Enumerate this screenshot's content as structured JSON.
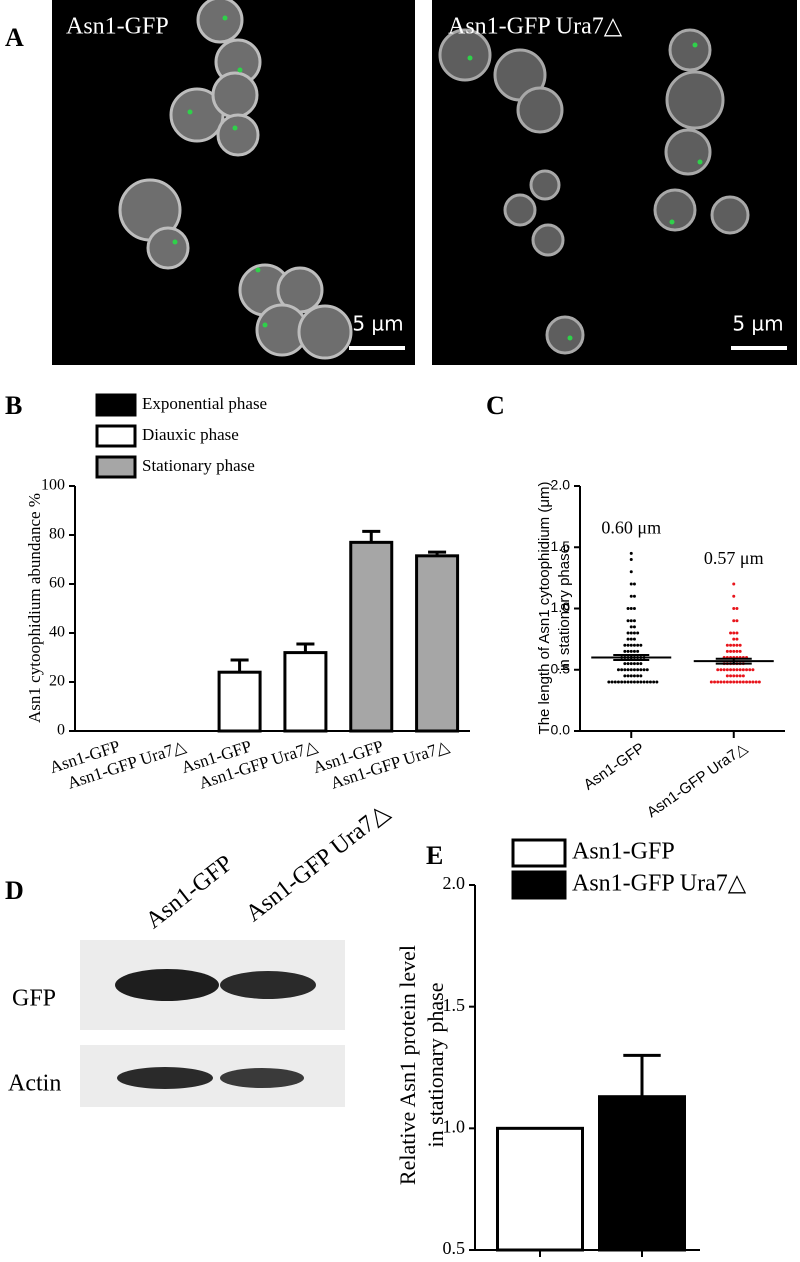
{
  "panel_labels": [
    "A",
    "B",
    "C",
    "D",
    "E"
  ],
  "micrographs": [
    {
      "label": "Asn1-GFP",
      "scale_bar": "5 µm"
    },
    {
      "label": "Asn1-GFP Ura7△",
      "scale_bar": "5 µm"
    }
  ],
  "western_blot": {
    "lanes": [
      "Asn1-GFP",
      "Asn1-GFP Ura7△"
    ],
    "rows": [
      "GFP",
      "Actin"
    ]
  },
  "chart_data": [
    {
      "type": "bar",
      "y_label": "Asn1 cytoophidium abundance %",
      "categories": [
        "Asn1-GFP",
        "Asn1-GFP Ura7△",
        "Asn1-GFP",
        "Asn1-GFP Ura7△",
        "Asn1-GFP",
        "Asn1-GFP Ura7△"
      ],
      "series": [
        {
          "name": "Exponential phase",
          "color": "#000000",
          "values": [
            0,
            0,
            null,
            null,
            null,
            null
          ]
        },
        {
          "name": "Diauxic phase",
          "color": "#ffffff",
          "values": [
            null,
            null,
            24,
            32,
            null,
            null
          ],
          "errors": [
            null,
            null,
            5,
            3.5,
            null,
            null
          ]
        },
        {
          "name": "Stationary phase",
          "color": "#a6a6a6",
          "values": [
            null,
            null,
            null,
            null,
            77,
            71.5
          ],
          "errors": [
            null,
            null,
            null,
            null,
            4.5,
            1.5
          ]
        }
      ],
      "ylim": [
        0,
        100
      ],
      "yticks": [
        0,
        20,
        40,
        60,
        80,
        100
      ],
      "legend": "top-left"
    },
    {
      "type": "scatter",
      "y_label": [
        "The length of Asn1 cytoophidium (μm)",
        "in stationary phase"
      ],
      "categories": [
        "Asn1-GFP",
        "Asn1-GFP Ura7△"
      ],
      "groups": [
        {
          "color": "#000000",
          "mean": 0.6,
          "mean_label": "0.60 μm",
          "sem": 0.02,
          "values": [
            0.4,
            0.4,
            0.4,
            0.4,
            0.4,
            0.4,
            0.4,
            0.4,
            0.4,
            0.4,
            0.4,
            0.4,
            0.4,
            0.4,
            0.4,
            0.4,
            0.45,
            0.45,
            0.45,
            0.45,
            0.45,
            0.45,
            0.5,
            0.5,
            0.5,
            0.5,
            0.5,
            0.5,
            0.5,
            0.5,
            0.5,
            0.5,
            0.55,
            0.55,
            0.55,
            0.55,
            0.55,
            0.55,
            0.6,
            0.6,
            0.6,
            0.6,
            0.6,
            0.6,
            0.6,
            0.6,
            0.65,
            0.65,
            0.65,
            0.65,
            0.65,
            0.7,
            0.7,
            0.7,
            0.7,
            0.7,
            0.7,
            0.75,
            0.75,
            0.75,
            0.8,
            0.8,
            0.8,
            0.8,
            0.85,
            0.85,
            0.9,
            0.9,
            0.9,
            1.0,
            1.0,
            1.0,
            1.1,
            1.1,
            1.2,
            1.2,
            1.3,
            1.4,
            1.45
          ]
        },
        {
          "color": "#e8141b",
          "mean": 0.57,
          "mean_label": "0.57 μm",
          "sem": 0.02,
          "values": [
            0.4,
            0.4,
            0.4,
            0.4,
            0.4,
            0.4,
            0.4,
            0.4,
            0.4,
            0.4,
            0.4,
            0.4,
            0.4,
            0.4,
            0.4,
            0.4,
            0.45,
            0.45,
            0.45,
            0.45,
            0.45,
            0.45,
            0.5,
            0.5,
            0.5,
            0.5,
            0.5,
            0.5,
            0.5,
            0.5,
            0.5,
            0.5,
            0.5,
            0.5,
            0.55,
            0.55,
            0.55,
            0.55,
            0.55,
            0.55,
            0.55,
            0.6,
            0.6,
            0.6,
            0.6,
            0.6,
            0.6,
            0.6,
            0.6,
            0.65,
            0.65,
            0.65,
            0.65,
            0.65,
            0.7,
            0.7,
            0.7,
            0.7,
            0.7,
            0.75,
            0.75,
            0.8,
            0.8,
            0.8,
            0.9,
            0.9,
            1.0,
            1.0,
            1.1,
            1.2
          ]
        }
      ],
      "ylim": [
        0,
        2
      ],
      "yticks": [
        {
          "value": 0,
          "label": "0.0"
        },
        {
          "value": 0.5,
          "label": "0.5"
        },
        {
          "value": 1,
          "label": "1.0"
        },
        {
          "value": 1.5,
          "label": "1.5"
        },
        {
          "value": 2,
          "label": "2.0"
        }
      ]
    },
    {
      "type": "bar",
      "y_label": [
        "Relative Asn1 protein level",
        "in stationary phase"
      ],
      "categories": [
        null,
        null
      ],
      "series": [
        {
          "name": "Asn1-GFP",
          "color": "#ffffff",
          "values": [
            1,
            null
          ]
        },
        {
          "name": "Asn1-GFP Ura7△",
          "color": "#000000",
          "values": [
            null,
            1.13
          ],
          "errors": [
            null,
            0.17
          ]
        }
      ],
      "ylim": [
        0.5,
        2
      ],
      "yticks": [
        {
          "value": 0.5,
          "label": "0.5"
        },
        {
          "value": 1,
          "label": "1.0"
        },
        {
          "value": 1.5,
          "label": "1.5"
        },
        {
          "value": 2,
          "label": "2.0"
        }
      ],
      "legend": "top-left"
    }
  ]
}
